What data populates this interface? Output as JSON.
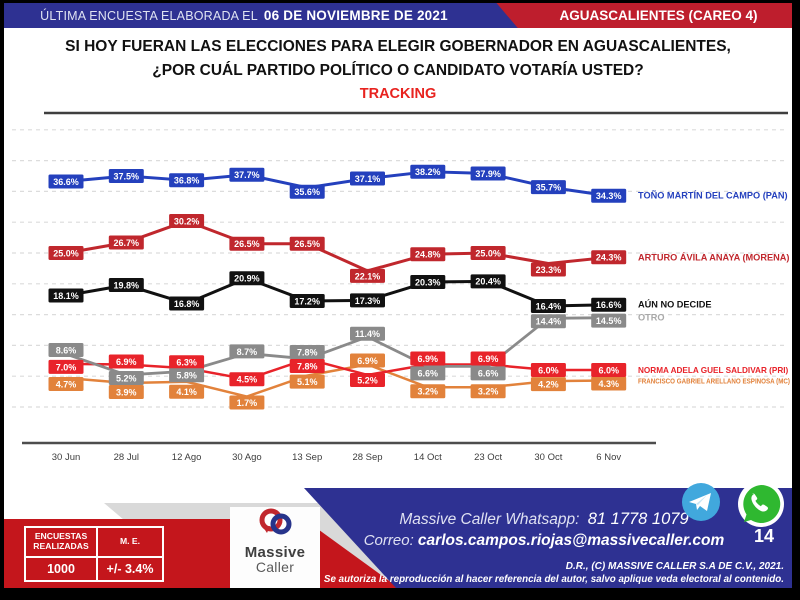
{
  "header": {
    "left_label": "ÚLTIMA ENCUESTA ELABORADA EL",
    "left_date": "06 DE NOVIEMBRE DE 2021",
    "right_label": "AGUASCALIENTES (CAREO 4)"
  },
  "title": {
    "line1": "SI HOY FUERAN LAS ELECCIONES PARA ELEGIR GOBERNADOR EN AGUASCALIENTES,",
    "line2": "¿POR CUÁL PARTIDO POLÍTICO O CANDIDATO VOTARÍA USTED?",
    "tracking": "TRACKING"
  },
  "chart_data": {
    "type": "line",
    "categories": [
      "30 Jun",
      "28 Jul",
      "12 Ago",
      "30 Ago",
      "13 Sep",
      "28 Sep",
      "14 Oct",
      "23 Oct",
      "30 Oct",
      "6 Nov"
    ],
    "series": [
      {
        "name": "TOÑO MARTÍN DEL CAMPO (PAN)",
        "color": "#2440bd",
        "values": [
          36.6,
          37.5,
          36.8,
          37.7,
          35.6,
          37.1,
          38.2,
          37.9,
          35.7,
          34.3
        ],
        "label_dy": [
          0,
          0,
          0,
          0,
          4,
          0,
          0,
          0,
          0,
          0
        ]
      },
      {
        "name": "ARTURO ÁVILA ANAYA (MORENA)",
        "color": "#c0272d",
        "values": [
          25.0,
          26.7,
          30.2,
          26.5,
          26.5,
          22.1,
          24.8,
          25.0,
          23.3,
          24.3
        ],
        "label_dy": [
          0,
          0,
          0,
          0,
          0,
          5,
          0,
          0,
          6,
          0
        ]
      },
      {
        "name": "AÚN NO DECIDE",
        "color": "#111111",
        "values": [
          18.1,
          19.8,
          16.8,
          20.9,
          17.2,
          17.3,
          20.3,
          20.4,
          16.4,
          16.6
        ],
        "label_dy": [
          0,
          0,
          0,
          0,
          0,
          0,
          0,
          0,
          0,
          0
        ]
      },
      {
        "name": "OTRO",
        "color": "#8a8a8a",
        "legend_color": "#a8a8a8",
        "values": [
          8.6,
          5.2,
          5.8,
          8.7,
          7.8,
          11.4,
          6.6,
          6.6,
          14.4,
          14.5
        ],
        "label_dy": [
          -4,
          3,
          4,
          -2,
          -7,
          -3,
          7,
          7,
          3,
          3
        ]
      },
      {
        "name": "NORMA ADELA GUEL SALDIVAR (PRI)",
        "color": "#e8232a",
        "values": [
          7.0,
          6.9,
          6.3,
          4.5,
          7.8,
          5.2,
          6.9,
          6.9,
          6.0,
          6.0
        ],
        "label_dy": [
          3,
          -3,
          -6,
          0,
          7,
          5,
          -6,
          -6,
          0,
          0
        ]
      },
      {
        "name": "FRANCISCO GABRIEL ARELLANO ESPINOSA (MC)",
        "color": "#e2823b",
        "values": [
          4.7,
          3.9,
          4.1,
          1.7,
          5.1,
          6.9,
          3.2,
          3.2,
          4.2,
          4.3
        ],
        "label_dy": [
          6,
          9,
          10,
          6,
          6,
          -4,
          4,
          4,
          3,
          3
        ]
      }
    ],
    "ylim": [
      0,
      45
    ],
    "grid": true,
    "legend_position": "right",
    "title": "TRACKING",
    "xlabel": "",
    "ylabel": ""
  },
  "footer": {
    "stats": {
      "col1_header": "ENCUESTAS REALIZADAS",
      "col2_header": "M. E.",
      "col1_value": "1000",
      "col2_value": "+/- 3.4%"
    },
    "logo": {
      "line1": "Massive",
      "line2": "Caller"
    },
    "contact": {
      "whatsapp_label": "Massive Caller Whatsapp:",
      "whatsapp_number": "81 1778 1079",
      "email_label": "Correo:",
      "email": "carlos.campos.riojas@massivecaller.com"
    },
    "page_number": "14",
    "copyright": "D.R., (C) MASSIVE CALLER S.A DE C.V., 2021.",
    "disclaimer": "Se autoriza la reproducción al hacer referencia del autor, salvo aplique veda electoral al contenido."
  },
  "colors": {
    "header_blue": "#2e3192",
    "header_red": "#be1e2d",
    "tracking_red": "#e8231f",
    "footer_red": "#c4161c",
    "telegram_blue": "#41a8dd",
    "whatsapp_green": "#2fb830"
  }
}
